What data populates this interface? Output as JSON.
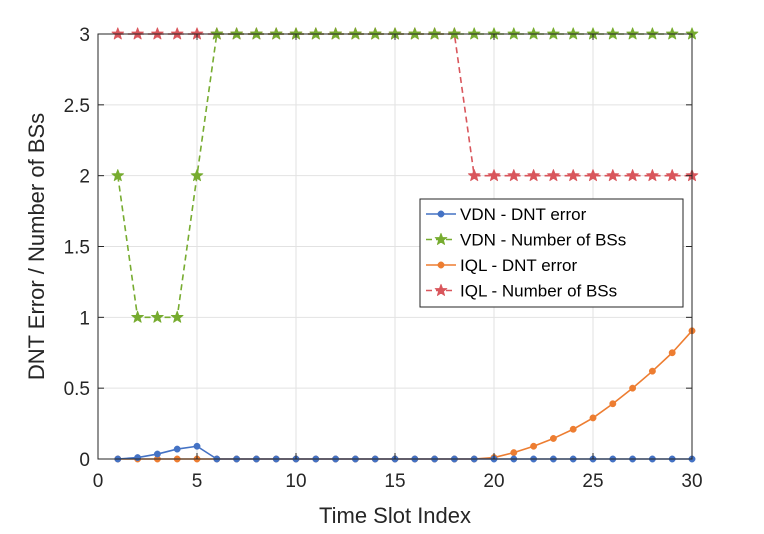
{
  "chart_data": {
    "type": "line",
    "title": "",
    "xlabel": "Time Slot Index",
    "ylabel": "DNT Error / Number of BSs",
    "xlim": [
      0,
      30
    ],
    "ylim": [
      0,
      3
    ],
    "xticks": [
      0,
      5,
      10,
      15,
      20,
      25,
      30
    ],
    "yticks": [
      0,
      0.5,
      1,
      1.5,
      2,
      2.5,
      3
    ],
    "xtick_labels": [
      "0",
      "5",
      "10",
      "15",
      "20",
      "25",
      "30"
    ],
    "ytick_labels": [
      "0",
      "0.5",
      "1",
      "1.5",
      "2",
      "2.5",
      "3"
    ],
    "grid": true,
    "legend_position": "center-right",
    "x": [
      1,
      2,
      3,
      4,
      5,
      6,
      7,
      8,
      9,
      10,
      11,
      12,
      13,
      14,
      15,
      16,
      17,
      18,
      19,
      20,
      21,
      22,
      23,
      24,
      25,
      26,
      27,
      28,
      29,
      30
    ],
    "series": [
      {
        "name": "VDN - DNT error",
        "color": "#4472C4",
        "marker": "circle",
        "line_style": "solid",
        "values": [
          0,
          0.01,
          0.035,
          0.07,
          0.09,
          0,
          0,
          0,
          0,
          0,
          0,
          0,
          0,
          0,
          0,
          0,
          0,
          0,
          0,
          0,
          0,
          0,
          0,
          0,
          0,
          0,
          0,
          0,
          0,
          0
        ]
      },
      {
        "name": "VDN - Number of BSs",
        "color": "#77AC30",
        "marker": "star",
        "line_style": "dashed",
        "values": [
          2,
          1,
          1,
          1,
          2,
          3,
          3,
          3,
          3,
          3,
          3,
          3,
          3,
          3,
          3,
          3,
          3,
          3,
          3,
          3,
          3,
          3,
          3,
          3,
          3,
          3,
          3,
          3,
          3,
          3
        ]
      },
      {
        "name": "IQL - DNT error",
        "color": "#ED7D31",
        "marker": "circle",
        "line_style": "solid",
        "values": [
          0,
          0,
          0,
          0,
          0,
          0,
          0,
          0,
          0,
          0,
          0,
          0,
          0,
          0,
          0,
          0,
          0,
          0,
          0,
          0.01,
          0.045,
          0.09,
          0.145,
          0.21,
          0.29,
          0.39,
          0.5,
          0.62,
          0.75,
          0.905
        ]
      },
      {
        "name": "IQL - Number of BSs",
        "color": "#D9565C",
        "marker": "star",
        "line_style": "dashed",
        "values": [
          3,
          3,
          3,
          3,
          3,
          3,
          3,
          3,
          3,
          3,
          3,
          3,
          3,
          3,
          3,
          3,
          3,
          3,
          2,
          2,
          2,
          2,
          2,
          2,
          2,
          2,
          2,
          2,
          2,
          2
        ]
      }
    ]
  }
}
